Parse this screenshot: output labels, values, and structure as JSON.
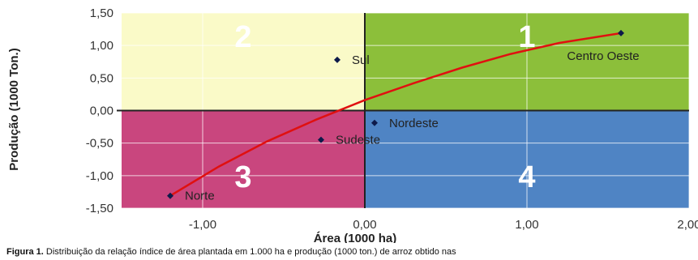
{
  "chart_data": {
    "type": "scatter",
    "xlabel": "Área (1000 ha)",
    "ylabel": "Produção (1000 Ton.)",
    "xlim": [
      -1.5,
      2.0
    ],
    "ylim": [
      -1.5,
      1.5
    ],
    "x_ticks": [
      -1.0,
      0.0,
      1.0,
      2.0
    ],
    "x_tick_labels": [
      "-1,00",
      "0,00",
      "1,00",
      "2,00"
    ],
    "y_ticks": [
      1.5,
      1.0,
      0.5,
      0.0,
      -0.5,
      -1.0,
      -1.5
    ],
    "y_tick_labels": [
      "1,50",
      "1,00",
      "0,50",
      "0,00",
      "-0,50",
      "-1,00",
      "-1,50"
    ],
    "grid": true,
    "quadrants": [
      {
        "label": "1",
        "x": [
          0,
          2.0
        ],
        "y": [
          0,
          1.5
        ],
        "color": "#8cbf3a"
      },
      {
        "label": "2",
        "x": [
          -1.5,
          0
        ],
        "y": [
          0,
          1.5
        ],
        "color": "#fafac8"
      },
      {
        "label": "3",
        "x": [
          -1.5,
          0
        ],
        "y": [
          -1.5,
          0
        ],
        "color": "#c9467e"
      },
      {
        "label": "4",
        "x": [
          0,
          2.0
        ],
        "y": [
          -1.5,
          0
        ],
        "color": "#4f84c4"
      }
    ],
    "points": [
      {
        "name": "Centro Oeste",
        "x": 1.58,
        "y": 1.19
      },
      {
        "name": "Sul",
        "x": -0.17,
        "y": 0.78
      },
      {
        "name": "Nordeste",
        "x": 0.06,
        "y": -0.19
      },
      {
        "name": "Sudeste",
        "x": -0.27,
        "y": -0.45
      },
      {
        "name": "Norte",
        "x": -1.2,
        "y": -1.31
      }
    ],
    "trend": [
      {
        "x": -1.2,
        "y": -1.31
      },
      {
        "x": -0.9,
        "y": -0.86
      },
      {
        "x": -0.6,
        "y": -0.47
      },
      {
        "x": -0.3,
        "y": -0.14
      },
      {
        "x": 0.0,
        "y": 0.16
      },
      {
        "x": 0.3,
        "y": 0.42
      },
      {
        "x": 0.6,
        "y": 0.66
      },
      {
        "x": 0.9,
        "y": 0.87
      },
      {
        "x": 1.2,
        "y": 1.04
      },
      {
        "x": 1.58,
        "y": 1.19
      }
    ],
    "trend_color": "#e01010",
    "point_color": "#0d1a4a"
  },
  "caption": {
    "bold": "Figura 1.",
    "text": " Distribuição da relação índice de área plantada em 1.000 ha e produção (1000 ton.) de arroz obtido nas"
  }
}
